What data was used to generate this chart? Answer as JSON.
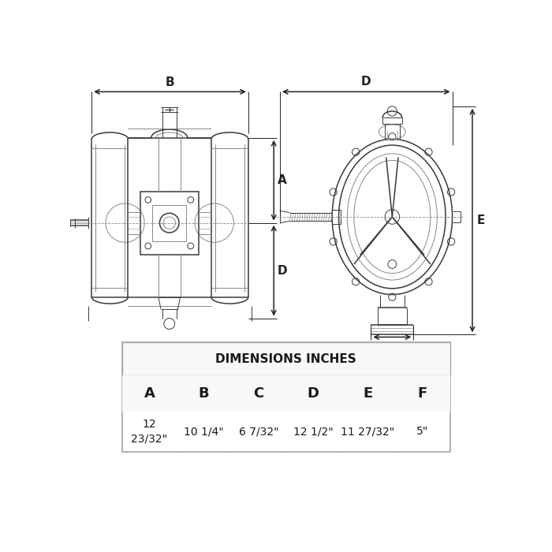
{
  "background_color": "#ffffff",
  "table_title": "DIMENSIONS INCHES",
  "col_headers": [
    "A",
    "B",
    "C",
    "D",
    "E",
    "F"
  ],
  "col_values": [
    "12\n23/32\"",
    "10 1/4\"",
    "6 7/32\"",
    "12 1/2\"",
    "11 27/32\"",
    "5\""
  ],
  "line_color": "#3a3a3a",
  "dim_color": "#222222",
  "light_line": "#888888",
  "table_border": "#aaaaaa",
  "lw_main": 1.1,
  "lw_thin": 0.7,
  "lw_dim": 1.0
}
